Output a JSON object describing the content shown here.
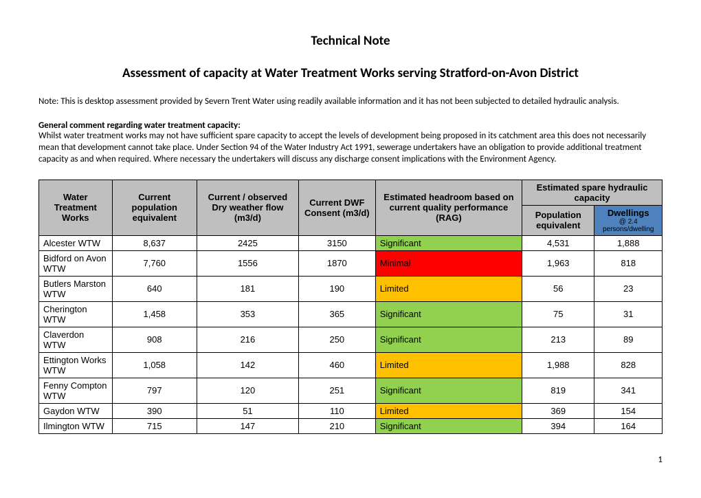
{
  "title": "Technical Note",
  "subtitle": "Assessment of capacity at Water Treatment Works serving Stratford-on-Avon District",
  "note_text": "Note:  This is desktop assessment provided by Severn Trent Water using readily available information and it has not been subjected to detailed hydraulic analysis.",
  "general_heading": "General comment regarding water treatment capacity:",
  "general_body": "Whilst water treatment works may not have sufficient spare capacity to accept the levels of development being proposed in its catchment area this does not necessarily mean that development cannot take place.  Under Section 94 of the Water Industry Act 1991, sewerage undertakers have an obligation to provide additional treatment capacity as and when required.  Where necessary the undertakers will discuss any discharge consent implications with the Environment Agency.",
  "table": {
    "header_bg": "#bfbfbf",
    "dwellings_bg": "#4f81bd",
    "rag_colors": {
      "Significant": "#92d050",
      "Minimal": "#ff0000",
      "Limited": "#ffc000"
    },
    "columns": {
      "wtw": "Water Treatment Works",
      "current_pop": "Current population equivalent",
      "dry_flow": "Current / observed Dry weather flow (m3/d)",
      "dwf_consent": "Current DWF Consent (m3/d)",
      "headroom": "Estimated headroom based on current quality performance (RAG)",
      "spare_cap": "Estimated spare hydraulic capacity",
      "pop_equiv": "Population equivalent",
      "dwellings": "Dwellings",
      "dwellings_sub": "@ 2.4 persons/dwelling"
    },
    "rows": [
      {
        "name": "Alcester WTW",
        "current_pop": "8,637",
        "dry_flow": "2425",
        "dwf_consent": "3150",
        "rag": "Significant",
        "pop_equiv": "4,531",
        "dwellings": "1,888"
      },
      {
        "name": "Bidford on Avon WTW",
        "current_pop": "7,760",
        "dry_flow": "1556",
        "dwf_consent": "1870",
        "rag": "Minimal",
        "pop_equiv": "1,963",
        "dwellings": "818"
      },
      {
        "name": "Butlers Marston WTW",
        "current_pop": "640",
        "dry_flow": "181",
        "dwf_consent": "190",
        "rag": "Limited",
        "pop_equiv": "56",
        "dwellings": "23"
      },
      {
        "name": "Cherington WTW",
        "current_pop": "1,458",
        "dry_flow": "353",
        "dwf_consent": "365",
        "rag": "Significant",
        "pop_equiv": "75",
        "dwellings": "31"
      },
      {
        "name": "Claverdon WTW",
        "current_pop": "908",
        "dry_flow": "216",
        "dwf_consent": "250",
        "rag": "Significant",
        "pop_equiv": "213",
        "dwellings": "89"
      },
      {
        "name": "Ettington Works WTW",
        "current_pop": "1,058",
        "dry_flow": "142",
        "dwf_consent": "460",
        "rag": "Limited",
        "pop_equiv": "1,988",
        "dwellings": "828"
      },
      {
        "name": "Fenny Compton WTW",
        "current_pop": "797",
        "dry_flow": "120",
        "dwf_consent": "251",
        "rag": "Significant",
        "pop_equiv": "819",
        "dwellings": "341"
      },
      {
        "name": "Gaydon WTW",
        "current_pop": "390",
        "dry_flow": "51",
        "dwf_consent": "110",
        "rag": "Limited",
        "pop_equiv": "369",
        "dwellings": "154"
      },
      {
        "name": "Ilmington WTW",
        "current_pop": "715",
        "dry_flow": "147",
        "dwf_consent": "210",
        "rag": "Significant",
        "pop_equiv": "394",
        "dwellings": "164"
      }
    ]
  },
  "page_number": "1"
}
